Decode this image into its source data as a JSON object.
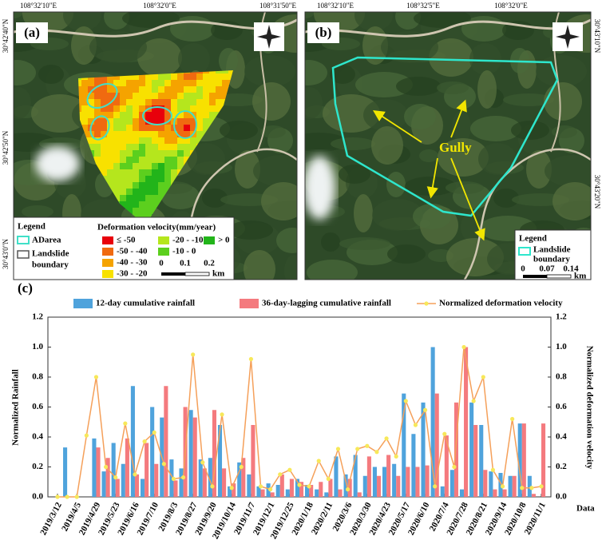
{
  "panel_a": {
    "label": "(a)",
    "top_coords": [
      "108°32'10\"E",
      "108°32'0\"E",
      "108°31'50\"E"
    ],
    "side_coords": [
      "30°42'40\"N",
      "30°42'50\"N",
      "30°43'0\"N"
    ],
    "legend": {
      "title": "Legend",
      "adarea": "ADarea",
      "adarea_color": "#40e0c8",
      "boundary": [
        "Landslide",
        "boundary"
      ],
      "boundary_color": "#555555",
      "velocity_title": "Deformation velocity(mm/year)",
      "classes": [
        {
          "label": "≤ -50",
          "color": "#e8000b"
        },
        {
          "label": "-50 - -40",
          "color": "#f06a10"
        },
        {
          "label": "-40 - -30",
          "color": "#f5a300"
        },
        {
          "label": "-30 - -20",
          "color": "#f8e100"
        },
        {
          "label": "-20 - -10",
          "color": "#b5e61d"
        },
        {
          "label": "-10 - 0",
          "color": "#5ccf1e"
        },
        {
          "label": "> 0",
          "color": "#22b41a"
        }
      ],
      "scale": [
        0,
        0.1,
        0.2
      ],
      "unit": "km"
    }
  },
  "panel_b": {
    "label": "(b)",
    "top_coords": [
      "108°32'10\"E",
      "108°32'5\"E",
      "108°32'0\"E"
    ],
    "side_coords": [
      "30°43'10\"N",
      "30°43'20\"N"
    ],
    "annotation": "Gully",
    "legend": {
      "title": "Legend",
      "boundary": [
        "Landslide",
        "boundary"
      ],
      "boundary_color": "#2ee6cc",
      "scale": [
        0,
        0.07,
        0.14
      ],
      "unit": "km"
    }
  },
  "chart_data": {
    "type": "bar",
    "label": "(c)",
    "categories": [
      "2019/3/12",
      null,
      "2019/4/5",
      null,
      "2019/4/29",
      null,
      "2019/5/23",
      null,
      "2019/6/16",
      null,
      "2019/7/10",
      null,
      "2019/8/3",
      null,
      "2019/8/27",
      null,
      "2019/9/20",
      null,
      "2019/10/14",
      null,
      "2019/11/7",
      null,
      "2019/12/1",
      null,
      "2019/12/25",
      null,
      "2020/1/18",
      null,
      "2020/2/11",
      null,
      "2020/3/6",
      null,
      "2020/3/30",
      null,
      "2020/4/23",
      null,
      "2020/5/17",
      null,
      "2020/6/10",
      null,
      "2020/7/4",
      null,
      "2020/7/28",
      null,
      "2020/8/21",
      null,
      "2020/9/14",
      null,
      "2020/10/8",
      null,
      "2020/11/1"
    ],
    "series": [
      {
        "name": "12-day cumulative rainfall",
        "color": "#4fa3dc",
        "values": [
          0,
          0.33,
          0,
          0,
          0.39,
          0.17,
          0.36,
          0.22,
          0.74,
          0.12,
          0.6,
          0.53,
          0.25,
          0.19,
          0.58,
          0.25,
          0.26,
          0.48,
          0.07,
          0.23,
          0.15,
          0.07,
          0.09,
          0.08,
          0.05,
          0.12,
          0.08,
          0.05,
          0.03,
          0.27,
          0.15,
          0.28,
          0.14,
          0.2,
          0.2,
          0.22,
          0.69,
          0.42,
          0.63,
          1.0,
          0.07,
          0.18,
          0.05,
          0.63,
          0.48,
          0.17,
          0.16,
          0.14,
          0.49,
          0.14,
          0
        ]
      },
      {
        "name": "36-day-lagging cumulative rainfall",
        "color": "#f47a7e",
        "values": [
          0,
          0,
          0,
          0,
          0.33,
          0.26,
          0.12,
          0.39,
          0.15,
          0.36,
          0.22,
          0.74,
          0.11,
          0.6,
          0.53,
          0.19,
          0.58,
          0.19,
          0.09,
          0.26,
          0.48,
          0.05,
          0.03,
          0.15,
          0.12,
          0.1,
          0.08,
          0.1,
          0.12,
          0.05,
          0.12,
          0.03,
          0.27,
          0.14,
          0.28,
          0.14,
          0.2,
          0.2,
          0.21,
          0.69,
          0.41,
          0.63,
          1.0,
          0.48,
          0.18,
          0.05,
          0.05,
          0.14,
          0.49,
          0.02,
          0.49
        ]
      },
      {
        "name": "Normalized deformation velocity",
        "type": "line",
        "axis": "y2",
        "color": "#f5a05a",
        "marker_color": "#f7e85a",
        "values": [
          0,
          0,
          0,
          0.41,
          0.8,
          0.2,
          0.13,
          0.49,
          0.15,
          0.37,
          0.43,
          0.22,
          0.12,
          0.13,
          0.95,
          0.23,
          0.07,
          0.55,
          0.06,
          0.2,
          0.92,
          0.07,
          0.05,
          0.15,
          0.18,
          0.08,
          0.07,
          0.24,
          0.12,
          0.32,
          0.05,
          0.32,
          0.34,
          0.3,
          0.39,
          0.27,
          0.64,
          0.48,
          0.58,
          0.07,
          0.42,
          0.2,
          1.0,
          0.64,
          0.8,
          0.18,
          0.07,
          0.52,
          0.06,
          0.06,
          0.07
        ]
      }
    ],
    "ylabel": "Normalized  Rainfall",
    "y2label": "Normalized deformation velocity",
    "xlabel": "Data",
    "ylim": [
      0,
      1.2
    ],
    "yticks": [
      {
        "value": 0,
        "label": "0.0"
      },
      0.2,
      0.4,
      0.6,
      0.8,
      {
        "value": 1,
        "label": "1.0"
      },
      1.2
    ],
    "y2lim": [
      0,
      1.2
    ],
    "y2ticks": [
      {
        "value": 0,
        "label": "0.0"
      },
      0.2,
      0.4,
      0.6,
      0.8,
      {
        "value": 1,
        "label": "1.0"
      },
      1.2
    ]
  }
}
